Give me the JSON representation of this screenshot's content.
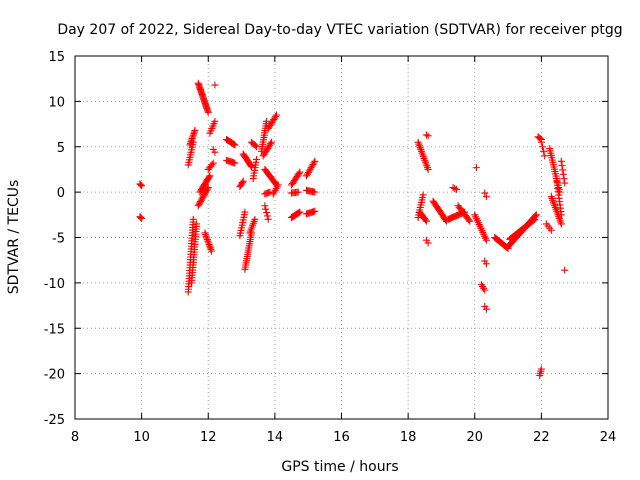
{
  "chart_data": {
    "type": "scatter",
    "title": "Day 207 of 2022, Sidereal Day-to-day VTEC variation (SDTVAR) for receiver ptgg",
    "xlabel": "GPS time / hours",
    "ylabel": "SDTVAR / TECUs",
    "xlim": [
      8,
      24
    ],
    "ylim": [
      -25,
      15
    ],
    "xticks": [
      "8",
      "10",
      "12",
      "14",
      "16",
      "18",
      "20",
      "22",
      "24"
    ],
    "yticks": [
      "15",
      "10",
      "5",
      "0",
      "-5",
      "-10",
      "-15",
      "-20",
      "-25"
    ],
    "grid": true,
    "marker": "plus",
    "color": "#ff0000",
    "segments": [
      {
        "x0": 9.95,
        "x1": 10.0,
        "y0": 0.9,
        "y1": 0.7,
        "n": 3
      },
      {
        "x0": 9.95,
        "x1": 10.0,
        "y0": -2.7,
        "y1": -2.9,
        "n": 3
      },
      {
        "x0": 11.4,
        "x1": 11.55,
        "y0": -11.0,
        "y1": -3.0,
        "n": 28
      },
      {
        "x0": 11.5,
        "x1": 11.65,
        "y0": -10.0,
        "y1": -3.5,
        "n": 24
      },
      {
        "x0": 11.45,
        "x1": 11.6,
        "y0": 5.2,
        "y1": 6.8,
        "n": 10
      },
      {
        "x0": 11.4,
        "x1": 11.55,
        "y0": 3.0,
        "y1": 5.5,
        "n": 10
      },
      {
        "x0": 11.7,
        "x1": 12.0,
        "y0": 12.0,
        "y1": 8.8,
        "n": 24
      },
      {
        "x0": 11.75,
        "x1": 12.05,
        "y0": 0.0,
        "y1": 1.8,
        "n": 14
      },
      {
        "x0": 11.7,
        "x1": 12.0,
        "y0": -1.5,
        "y1": 0.5,
        "n": 14
      },
      {
        "x0": 11.9,
        "x1": 12.1,
        "y0": -4.5,
        "y1": -6.5,
        "n": 12
      },
      {
        "x0": 12.05,
        "x1": 12.2,
        "y0": 6.5,
        "y1": 7.8,
        "n": 6
      },
      {
        "x0": 12.2,
        "x1": 12.2,
        "y0": 11.8,
        "y1": 11.8,
        "n": 1
      },
      {
        "x0": 12.15,
        "x1": 12.2,
        "y0": 4.7,
        "y1": 4.4,
        "n": 2
      },
      {
        "x0": 12.0,
        "x1": 12.15,
        "y0": 2.5,
        "y1": 3.2,
        "n": 5
      },
      {
        "x0": 12.55,
        "x1": 12.8,
        "y0": 5.8,
        "y1": 5.2,
        "n": 10
      },
      {
        "x0": 12.55,
        "x1": 12.8,
        "y0": 3.5,
        "y1": 3.2,
        "n": 8
      },
      {
        "x0": 12.95,
        "x1": 13.1,
        "y0": -4.8,
        "y1": -2.2,
        "n": 10
      },
      {
        "x0": 12.95,
        "x1": 13.05,
        "y0": 0.6,
        "y1": 1.2,
        "n": 5
      },
      {
        "x0": 13.05,
        "x1": 13.3,
        "y0": 4.2,
        "y1": 2.8,
        "n": 12
      },
      {
        "x0": 13.1,
        "x1": 13.3,
        "y0": -8.5,
        "y1": -4.5,
        "n": 18
      },
      {
        "x0": 13.25,
        "x1": 13.4,
        "y0": -4.5,
        "y1": -3.0,
        "n": 8
      },
      {
        "x0": 13.3,
        "x1": 13.45,
        "y0": 5.5,
        "y1": 5.0,
        "n": 5
      },
      {
        "x0": 13.35,
        "x1": 13.45,
        "y0": 1.5,
        "y1": 3.6,
        "n": 8
      },
      {
        "x0": 13.6,
        "x1": 13.75,
        "y0": 4.5,
        "y1": 7.8,
        "n": 14
      },
      {
        "x0": 13.65,
        "x1": 13.9,
        "y0": 4.0,
        "y1": 5.5,
        "n": 10
      },
      {
        "x0": 13.7,
        "x1": 14.05,
        "y0": 2.5,
        "y1": 0.8,
        "n": 14
      },
      {
        "x0": 13.7,
        "x1": 13.85,
        "y0": -0.2,
        "y1": 0.0,
        "n": 5
      },
      {
        "x0": 13.7,
        "x1": 13.8,
        "y0": -1.5,
        "y1": -3.0,
        "n": 5
      },
      {
        "x0": 13.8,
        "x1": 14.05,
        "y0": 7.0,
        "y1": 8.5,
        "n": 10
      },
      {
        "x0": 13.95,
        "x1": 14.1,
        "y0": -0.2,
        "y1": 0.8,
        "n": 6
      },
      {
        "x0": 14.5,
        "x1": 14.75,
        "y0": 0.8,
        "y1": 2.2,
        "n": 10
      },
      {
        "x0": 14.5,
        "x1": 14.75,
        "y0": -2.8,
        "y1": -2.2,
        "n": 10
      },
      {
        "x0": 14.5,
        "x1": 14.7,
        "y0": -0.1,
        "y1": 0.0,
        "n": 6
      },
      {
        "x0": 14.95,
        "x1": 15.2,
        "y0": 1.8,
        "y1": 3.4,
        "n": 10
      },
      {
        "x0": 14.95,
        "x1": 15.2,
        "y0": 0.2,
        "y1": 0.0,
        "n": 8
      },
      {
        "x0": 14.95,
        "x1": 15.2,
        "y0": -2.4,
        "y1": -2.1,
        "n": 8
      },
      {
        "x0": 18.3,
        "x1": 18.6,
        "y0": 5.5,
        "y1": 2.5,
        "n": 16
      },
      {
        "x0": 18.3,
        "x1": 18.45,
        "y0": -2.8,
        "y1": -0.3,
        "n": 10
      },
      {
        "x0": 18.35,
        "x1": 18.55,
        "y0": -2.2,
        "y1": -3.2,
        "n": 8
      },
      {
        "x0": 18.55,
        "x1": 18.6,
        "y0": 6.3,
        "y1": 6.2,
        "n": 2
      },
      {
        "x0": 18.55,
        "x1": 18.6,
        "y0": -5.3,
        "y1": -5.6,
        "n": 2
      },
      {
        "x0": 18.75,
        "x1": 19.15,
        "y0": -1.0,
        "y1": -3.2,
        "n": 16
      },
      {
        "x0": 19.2,
        "x1": 19.7,
        "y0": -3.0,
        "y1": -2.2,
        "n": 16
      },
      {
        "x0": 19.35,
        "x1": 19.45,
        "y0": 0.5,
        "y1": 0.3,
        "n": 3
      },
      {
        "x0": 19.5,
        "x1": 19.85,
        "y0": -1.5,
        "y1": -3.2,
        "n": 12
      },
      {
        "x0": 20.0,
        "x1": 20.35,
        "y0": -2.5,
        "y1": -5.3,
        "n": 14
      },
      {
        "x0": 20.05,
        "x1": 20.05,
        "y0": 2.7,
        "y1": 2.7,
        "n": 1
      },
      {
        "x0": 20.2,
        "x1": 20.3,
        "y0": -10.2,
        "y1": -10.8,
        "n": 4
      },
      {
        "x0": 20.3,
        "x1": 20.35,
        "y0": -7.6,
        "y1": -7.9,
        "n": 2
      },
      {
        "x0": 20.3,
        "x1": 20.35,
        "y0": -12.6,
        "y1": -12.9,
        "n": 2
      },
      {
        "x0": 20.3,
        "x1": 20.35,
        "y0": -0.1,
        "y1": -0.5,
        "n": 2
      },
      {
        "x0": 20.6,
        "x1": 21.0,
        "y0": -5.0,
        "y1": -6.2,
        "n": 16
      },
      {
        "x0": 21.0,
        "x1": 21.85,
        "y0": -6.0,
        "y1": -2.5,
        "n": 34
      },
      {
        "x0": 21.05,
        "x1": 21.8,
        "y0": -5.2,
        "y1": -3.0,
        "n": 26
      },
      {
        "x0": 21.95,
        "x1": 22.0,
        "y0": -20.2,
        "y1": -19.5,
        "n": 4
      },
      {
        "x0": 21.9,
        "x1": 22.0,
        "y0": 6.1,
        "y1": 5.8,
        "n": 4
      },
      {
        "x0": 22.0,
        "x1": 22.1,
        "y0": 5.5,
        "y1": 4.0,
        "n": 4
      },
      {
        "x0": 22.25,
        "x1": 22.55,
        "y0": 4.8,
        "y1": 0.0,
        "n": 20
      },
      {
        "x0": 22.3,
        "x1": 22.6,
        "y0": -0.5,
        "y1": -3.5,
        "n": 16
      },
      {
        "x0": 22.45,
        "x1": 22.6,
        "y0": 1.5,
        "y1": -2.5,
        "n": 12
      },
      {
        "x0": 22.6,
        "x1": 22.7,
        "y0": 3.4,
        "y1": 1.0,
        "n": 6
      },
      {
        "x0": 22.7,
        "x1": 22.7,
        "y0": -8.6,
        "y1": -8.6,
        "n": 1
      },
      {
        "x0": 22.15,
        "x1": 22.3,
        "y0": -3.5,
        "y1": -4.2,
        "n": 4
      }
    ]
  }
}
